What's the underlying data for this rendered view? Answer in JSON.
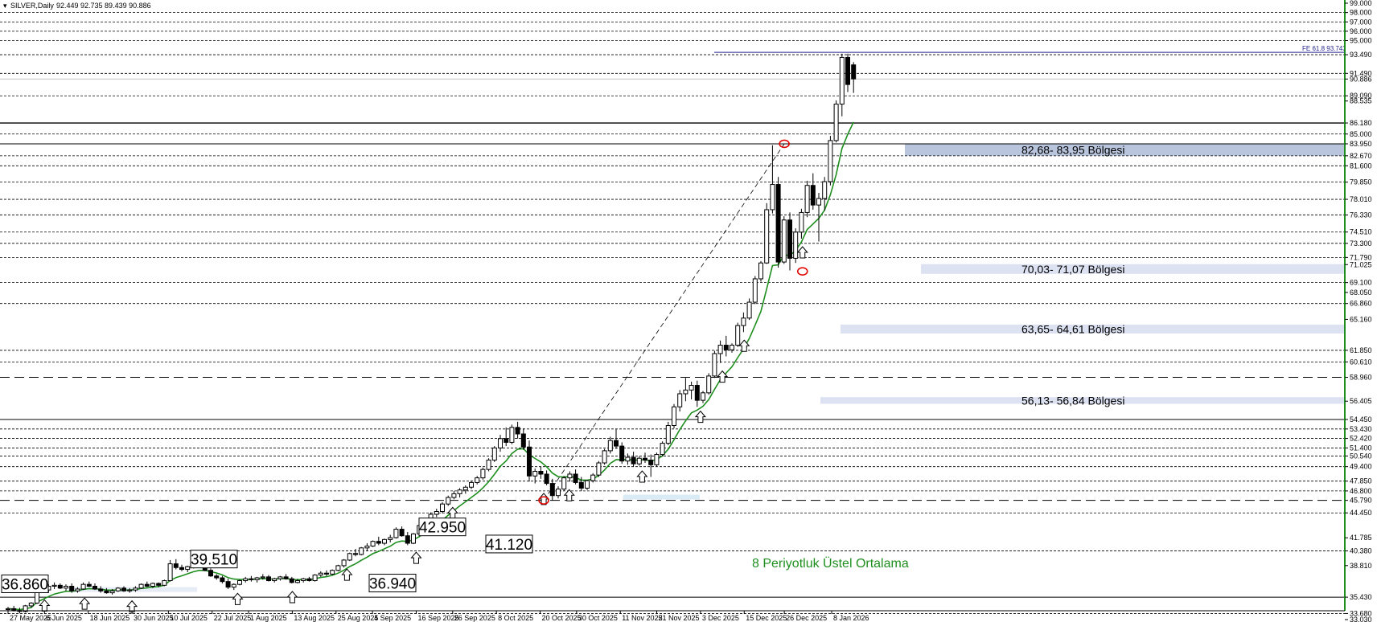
{
  "header": {
    "symbol_text": "SILVER,Daily",
    "ohlc_text": "92.449 92.735 89.439 90.886"
  },
  "colors": {
    "ema": "#1e8f1e",
    "zone_light": "#dde2f3",
    "zone_dark": "#b8c5dd",
    "axis_border": "#1e8f1e",
    "fib_line": "#23238e",
    "marker_red": "#e00000"
  },
  "price_axis_ticks": [
    "99.000",
    "98.000",
    "97.000",
    "96.000",
    "95.000",
    "93.490",
    "91.490",
    "90.886",
    "89.090",
    "88.535",
    "86.180",
    "85.000",
    "83.950",
    "82.670",
    "81.600",
    "79.850",
    "78.010",
    "76.330",
    "74.510",
    "73.300",
    "71.790",
    "71.025",
    "69.100",
    "68.050",
    "66.860",
    "65.160",
    "61.850",
    "60.610",
    "58.960",
    "56.405",
    "54.450",
    "53.430",
    "52.420",
    "51.400",
    "50.540",
    "49.400",
    "47.850",
    "46.800",
    "45.790",
    "44.450",
    "41.785",
    "40.380",
    "38.810",
    "35.430",
    "33.680",
    "33.030"
  ],
  "date_axis_labels": [
    "27 May 2025",
    "6 Jun 2025",
    "18 Jun 2025",
    "30 Jun 2025",
    "10 Jul 2025",
    "22 Jul 2025",
    "1 Aug 2025",
    "13 Aug 2025",
    "25 Aug 2025",
    "4 Sep 2025",
    "16 Sep 2025",
    "26 Sep 2025",
    "8 Oct 2025",
    "20 Oct 2025",
    "30 Oct 2025",
    "11 Nov 2025",
    "21 Nov 2025",
    "3 Dec 2025",
    "15 Dec 2025",
    "26 Dec 2025",
    "8 Jan 2026"
  ],
  "zones": [
    {
      "label": "82,68- 83,95 Bölgesi",
      "low": 82.68,
      "high": 83.95
    },
    {
      "label": "70,03- 71,07 Bölgesi",
      "low": 70.03,
      "high": 71.07
    },
    {
      "label": "63,65- 64,61 Bölgesi",
      "low": 63.65,
      "high": 64.61
    },
    {
      "label": "56,13- 56,84 Bölgesi",
      "low": 56.13,
      "high": 56.84
    }
  ],
  "price_boxes": [
    {
      "label": "36.860",
      "value": 36.86
    },
    {
      "label": "39.510",
      "value": 39.51
    },
    {
      "label": "36.940",
      "value": 36.94
    },
    {
      "label": "42.950",
      "value": 42.95
    },
    {
      "label": "41.120",
      "value": 41.12
    }
  ],
  "fib_label": "FE 61.8 93.743",
  "fib_value": 93.743,
  "ema_label": "8 Periyotluk Üstel Ortalama",
  "chart_data": {
    "type": "candlestick",
    "y_range": [
      33.03,
      99.0
    ],
    "x_range": [
      "27 May 2025",
      "14 Jan 2026"
    ],
    "grid": false,
    "horizontal_levels_dashed": [
      98.0,
      97.0,
      96.0,
      95.0,
      93.49,
      91.49,
      89.09,
      85.0,
      82.67,
      81.6,
      79.85,
      78.01,
      76.33,
      74.51,
      73.3,
      71.79,
      69.1,
      66.86,
      61.85,
      60.61,
      53.43,
      52.42,
      51.4,
      50.54,
      49.4,
      47.85,
      46.8,
      44.45,
      40.38,
      33.68
    ],
    "horizontal_levels_long_dash": [
      58.96,
      45.79
    ],
    "horizontal_levels_solid": [
      86.18,
      83.95,
      54.45,
      35.43
    ],
    "ema_period": 8,
    "ema_name": "8 Periyotluk Üstel Ortalama",
    "arrow_marker_dates": [
      "6 Jun 2025",
      "17 Jun 2025",
      "30 Jun 2025",
      "29 Jul 2025",
      "13 Aug 2025",
      "28 Aug 2025",
      "16 Sep 2025",
      "26 Sep 2025",
      "21 Oct 2025",
      "28 Oct 2025",
      "17 Nov 2025",
      "3 Dec 2025",
      "9 Dec 2025",
      "15 Dec 2025",
      "31 Dec 2025"
    ],
    "circle_markers": [
      {
        "date": "21 Oct 2025",
        "price": 45.79
      },
      {
        "date": "26 Dec 2025",
        "price": 83.95
      },
      {
        "date": "31 Dec 2025",
        "price": 70.3
      }
    ],
    "trend_line": {
      "from": {
        "date": "21 Oct 2025",
        "price": 45.79
      },
      "to": {
        "date": "26 Dec 2025",
        "price": 83.95
      }
    },
    "candles": [
      [
        34.1,
        34.4,
        33.9,
        34.2
      ],
      [
        34.2,
        34.5,
        33.9,
        34.0
      ],
      [
        34.0,
        34.3,
        33.7,
        33.9
      ],
      [
        33.9,
        34.6,
        33.8,
        34.5
      ],
      [
        34.5,
        34.9,
        34.3,
        34.8
      ],
      [
        34.8,
        37.1,
        34.7,
        36.9
      ],
      [
        36.9,
        37.4,
        36.0,
        36.2
      ],
      [
        36.2,
        36.8,
        35.9,
        36.6
      ],
      [
        36.6,
        37.0,
        36.3,
        36.7
      ],
      [
        36.7,
        36.9,
        36.3,
        36.4
      ],
      [
        36.4,
        36.8,
        36.1,
        36.6
      ],
      [
        36.6,
        36.9,
        35.9,
        36.1
      ],
      [
        36.1,
        36.5,
        35.9,
        36.3
      ],
      [
        36.3,
        37.0,
        36.2,
        36.8
      ],
      [
        36.8,
        37.1,
        36.5,
        36.6
      ],
      [
        36.6,
        36.9,
        36.2,
        36.3
      ],
      [
        36.3,
        36.6,
        35.9,
        36.1
      ],
      [
        36.1,
        36.4,
        35.8,
        35.9
      ],
      [
        35.9,
        36.3,
        35.7,
        36.1
      ],
      [
        36.1,
        36.5,
        36.0,
        36.4
      ],
      [
        36.4,
        36.6,
        36.0,
        36.1
      ],
      [
        36.1,
        36.4,
        35.9,
        36.2
      ],
      [
        36.2,
        36.6,
        36.0,
        36.4
      ],
      [
        36.4,
        36.9,
        36.3,
        36.8
      ],
      [
        36.8,
        37.1,
        36.5,
        36.6
      ],
      [
        36.6,
        37.0,
        36.4,
        36.9
      ],
      [
        36.9,
        37.0,
        36.5,
        36.7
      ],
      [
        36.7,
        37.3,
        36.6,
        37.2
      ],
      [
        37.2,
        39.4,
        37.1,
        39.0
      ],
      [
        39.0,
        39.5,
        38.4,
        38.6
      ],
      [
        38.6,
        38.9,
        38.2,
        38.4
      ],
      [
        38.4,
        38.8,
        38.1,
        38.7
      ],
      [
        38.7,
        39.1,
        38.5,
        38.9
      ],
      [
        38.9,
        39.3,
        38.6,
        38.8
      ],
      [
        38.8,
        39.1,
        38.2,
        38.3
      ],
      [
        38.3,
        38.5,
        37.6,
        37.7
      ],
      [
        37.7,
        37.9,
        37.3,
        37.5
      ],
      [
        37.5,
        37.7,
        36.9,
        37.1
      ],
      [
        37.1,
        37.4,
        36.3,
        36.5
      ],
      [
        36.5,
        36.9,
        36.2,
        36.8
      ],
      [
        36.8,
        37.3,
        36.7,
        37.2
      ],
      [
        37.2,
        37.6,
        37.0,
        37.4
      ],
      [
        37.4,
        37.7,
        37.1,
        37.3
      ],
      [
        37.3,
        37.6,
        37.0,
        37.5
      ],
      [
        37.5,
        37.9,
        37.3,
        37.6
      ],
      [
        37.6,
        37.8,
        37.1,
        37.2
      ],
      [
        37.2,
        37.5,
        37.0,
        37.4
      ],
      [
        37.4,
        37.7,
        37.2,
        37.6
      ],
      [
        37.6,
        37.9,
        37.3,
        37.4
      ],
      [
        37.4,
        37.6,
        36.9,
        37.0
      ],
      [
        37.0,
        37.4,
        36.9,
        37.2
      ],
      [
        37.2,
        37.5,
        37.0,
        37.4
      ],
      [
        37.4,
        37.6,
        37.1,
        37.2
      ],
      [
        37.2,
        37.9,
        37.1,
        37.8
      ],
      [
        37.8,
        38.2,
        37.6,
        38.0
      ],
      [
        38.0,
        38.3,
        37.7,
        37.9
      ],
      [
        37.9,
        38.4,
        37.8,
        38.3
      ],
      [
        38.3,
        38.9,
        38.2,
        38.8
      ],
      [
        38.8,
        39.5,
        38.6,
        39.4
      ],
      [
        39.4,
        40.2,
        39.3,
        40.1
      ],
      [
        40.1,
        40.6,
        39.8,
        40.0
      ],
      [
        40.0,
        40.8,
        39.9,
        40.7
      ],
      [
        40.7,
        41.2,
        40.4,
        40.9
      ],
      [
        40.9,
        41.5,
        40.8,
        41.4
      ],
      [
        41.4,
        41.9,
        41.0,
        41.2
      ],
      [
        41.2,
        41.7,
        41.0,
        41.6
      ],
      [
        41.6,
        42.1,
        41.3,
        41.8
      ],
      [
        41.8,
        42.9,
        41.7,
        42.7
      ],
      [
        42.7,
        43.0,
        41.9,
        42.0
      ],
      [
        42.0,
        42.4,
        41.0,
        41.2
      ],
      [
        41.2,
        42.3,
        41.1,
        42.2
      ],
      [
        42.2,
        43.2,
        42.1,
        43.1
      ],
      [
        43.1,
        43.9,
        42.9,
        43.7
      ],
      [
        43.7,
        44.5,
        43.5,
        44.3
      ],
      [
        44.3,
        44.9,
        44.0,
        44.6
      ],
      [
        44.6,
        45.6,
        44.4,
        45.4
      ],
      [
        45.4,
        46.3,
        45.2,
        46.1
      ],
      [
        46.1,
        46.8,
        45.9,
        46.5
      ],
      [
        46.5,
        47.1,
        46.1,
        46.9
      ],
      [
        46.9,
        47.4,
        46.5,
        47.2
      ],
      [
        47.2,
        47.9,
        47.0,
        47.7
      ],
      [
        47.7,
        48.4,
        47.5,
        48.2
      ],
      [
        48.2,
        49.3,
        48.0,
        49.1
      ],
      [
        49.1,
        50.3,
        48.9,
        50.1
      ],
      [
        50.1,
        51.6,
        49.9,
        51.4
      ],
      [
        51.4,
        52.8,
        51.0,
        52.4
      ],
      [
        52.4,
        53.6,
        51.6,
        52.0
      ],
      [
        52.0,
        53.9,
        51.8,
        53.6
      ],
      [
        53.6,
        54.2,
        52.4,
        52.9
      ],
      [
        52.9,
        53.5,
        51.2,
        51.5
      ],
      [
        51.5,
        52.2,
        47.8,
        48.4
      ],
      [
        48.4,
        49.2,
        47.6,
        48.9
      ],
      [
        48.9,
        49.4,
        48.1,
        48.6
      ],
      [
        48.6,
        49.0,
        47.4,
        47.6
      ],
      [
        47.6,
        48.1,
        45.8,
        46.3
      ],
      [
        46.3,
        47.3,
        46.0,
        47.0
      ],
      [
        47.0,
        48.4,
        46.8,
        48.2
      ],
      [
        48.2,
        48.9,
        47.8,
        48.6
      ],
      [
        48.6,
        49.1,
        47.5,
        47.7
      ],
      [
        47.7,
        48.3,
        46.8,
        47.1
      ],
      [
        47.1,
        48.0,
        46.9,
        47.9
      ],
      [
        47.9,
        48.7,
        47.7,
        48.5
      ],
      [
        48.5,
        50.0,
        48.3,
        49.8
      ],
      [
        49.8,
        51.3,
        49.6,
        51.1
      ],
      [
        51.1,
        52.6,
        50.8,
        52.2
      ],
      [
        52.2,
        53.4,
        51.3,
        51.6
      ],
      [
        51.6,
        52.0,
        49.7,
        50.0
      ],
      [
        50.0,
        50.8,
        49.6,
        50.4
      ],
      [
        50.4,
        51.0,
        49.4,
        49.7
      ],
      [
        49.7,
        50.5,
        49.5,
        50.3
      ],
      [
        50.3,
        50.9,
        49.8,
        50.1
      ],
      [
        50.1,
        50.7,
        48.3,
        49.6
      ],
      [
        49.6,
        50.9,
        49.4,
        50.7
      ],
      [
        50.7,
        52.1,
        50.5,
        51.9
      ],
      [
        51.9,
        54.2,
        51.7,
        53.8
      ],
      [
        53.8,
        56.1,
        53.5,
        55.8
      ],
      [
        55.8,
        57.6,
        55.3,
        57.2
      ],
      [
        57.2,
        58.9,
        56.4,
        57.6
      ],
      [
        57.6,
        58.5,
        56.6,
        58.1
      ],
      [
        58.1,
        58.6,
        55.8,
        56.5
      ],
      [
        56.5,
        57.5,
        56.2,
        57.3
      ],
      [
        57.3,
        59.4,
        57.1,
        59.1
      ],
      [
        59.1,
        61.8,
        58.9,
        61.5
      ],
      [
        61.5,
        62.9,
        60.5,
        62.4
      ],
      [
        62.4,
        63.4,
        61.2,
        61.9
      ],
      [
        61.9,
        62.6,
        61.6,
        62.4
      ],
      [
        62.4,
        64.8,
        62.2,
        64.5
      ],
      [
        64.5,
        65.9,
        63.8,
        65.3
      ],
      [
        65.3,
        67.4,
        65.1,
        67.0
      ],
      [
        67.0,
        69.8,
        66.8,
        69.5
      ],
      [
        69.5,
        71.4,
        69.2,
        71.2
      ],
      [
        71.2,
        77.6,
        71.1,
        76.9
      ],
      [
        76.9,
        83.8,
        76.5,
        79.6
      ],
      [
        79.6,
        80.4,
        70.7,
        71.3
      ],
      [
        71.3,
        76.2,
        71.1,
        75.8
      ],
      [
        75.8,
        76.6,
        70.4,
        71.7
      ],
      [
        71.7,
        74.9,
        71.2,
        74.5
      ],
      [
        74.5,
        77.0,
        73.8,
        76.6
      ],
      [
        76.6,
        80.0,
        76.1,
        79.5
      ],
      [
        79.5,
        80.8,
        76.9,
        77.4
      ],
      [
        77.4,
        78.7,
        73.5,
        78.1
      ],
      [
        78.1,
        80.4,
        76.8,
        79.9
      ],
      [
        79.9,
        84.8,
        79.5,
        84.3
      ],
      [
        84.3,
        88.6,
        84.1,
        88.2
      ],
      [
        88.2,
        93.6,
        86.9,
        93.2
      ],
      [
        93.2,
        93.6,
        89.5,
        90.3
      ],
      [
        92.4,
        92.7,
        89.4,
        90.9
      ]
    ]
  }
}
